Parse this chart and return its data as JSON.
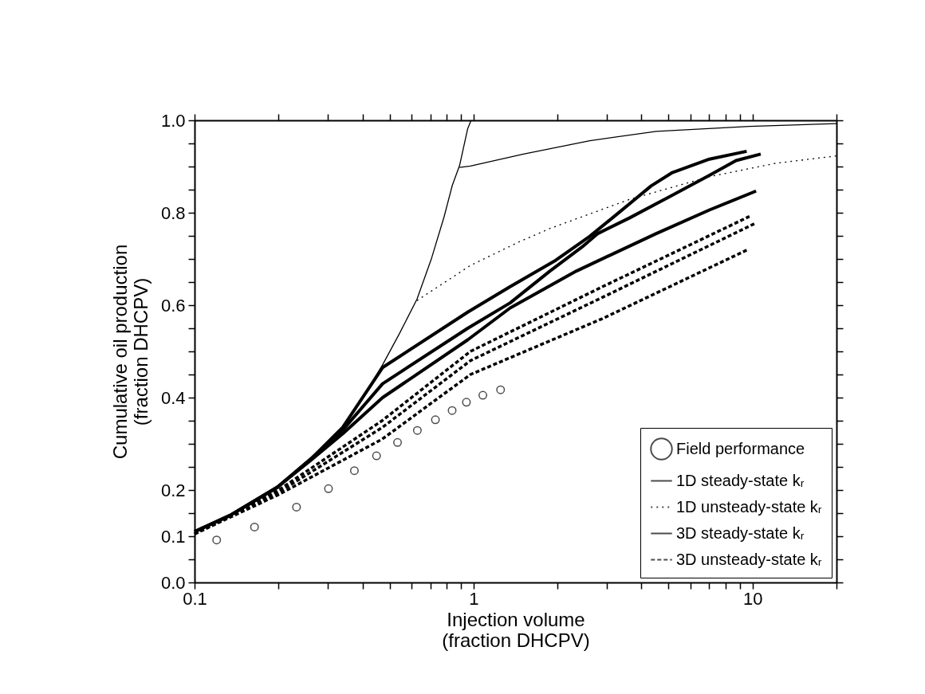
{
  "chart_data": {
    "type": "line",
    "xlabel": "Injection volume\n(fraction DHCPV)",
    "ylabel": "Cumulative oil production\n(fraction DHCPV)",
    "log": "x",
    "xlim": [
      0.1,
      20
    ],
    "ylim": [
      0,
      1.0
    ],
    "xticks": [
      {
        "value": 0.1,
        "label": "0.1"
      },
      {
        "value": 0.2,
        "label": null
      },
      {
        "value": 0.3,
        "label": null
      },
      {
        "value": 0.4,
        "label": null
      },
      {
        "value": 0.5,
        "label": null
      },
      {
        "value": 0.6,
        "label": null
      },
      {
        "value": 0.7,
        "label": null
      },
      {
        "value": 0.8,
        "label": null
      },
      {
        "value": 0.9,
        "label": null
      },
      1,
      {
        "value": 2,
        "label": null
      },
      {
        "value": 3,
        "label": null
      },
      {
        "value": 4,
        "label": null
      },
      {
        "value": 5,
        "label": null
      },
      {
        "value": 6,
        "label": null
      },
      {
        "value": 7,
        "label": null
      },
      {
        "value": 8,
        "label": null
      },
      {
        "value": 9,
        "label": null
      },
      10,
      {
        "value": 20,
        "label": null
      }
    ],
    "yticks": [
      {
        "value": 0,
        "label": "0.0"
      },
      {
        "value": 0.05,
        "label": null
      },
      0.1,
      {
        "value": 0.15,
        "label": null
      },
      {
        "value": 0.2,
        "label": "0.2"
      },
      {
        "value": 0.25,
        "label": null
      },
      {
        "value": 0.3,
        "label": null
      },
      {
        "value": 0.35,
        "label": null
      },
      {
        "value": 0.4,
        "label": "0.4"
      },
      {
        "value": 0.45,
        "label": null
      },
      {
        "value": 0.5,
        "label": null
      },
      {
        "value": 0.55,
        "label": null
      },
      {
        "value": 0.6,
        "label": "0.6"
      },
      {
        "value": 0.65,
        "label": null
      },
      {
        "value": 0.7,
        "label": null
      },
      {
        "value": 0.75,
        "label": null
      },
      {
        "value": 0.8,
        "label": "0.8"
      },
      {
        "value": 0.85,
        "label": null
      },
      {
        "value": 0.9,
        "label": null
      },
      {
        "value": 0.95,
        "label": null
      },
      {
        "value": 1.0,
        "label": "1.0"
      }
    ],
    "grid": false,
    "legend": "bottom right",
    "series": [
      {
        "name": "Field performance",
        "type": "scatter",
        "marker": "circle",
        "color": "#000000",
        "x": [
          0.12,
          0.164,
          0.232,
          0.302,
          0.374,
          0.449,
          0.534,
          0.629,
          0.73,
          0.838,
          0.943,
          1.08,
          1.25
        ],
        "values": [
          0.092,
          0.12,
          0.163,
          0.203,
          0.242,
          0.274,
          0.303,
          0.329,
          0.352,
          0.372,
          0.39,
          0.405,
          0.417
        ]
      },
      {
        "name": "1D steady-state kᵣ",
        "type": "line",
        "line_style": "solid",
        "color": "#000000",
        "x": [
          0.1,
          0.134,
          0.198,
          0.262,
          0.34,
          0.392,
          0.472,
          0.543,
          0.627,
          0.705,
          0.784,
          0.839,
          0.891,
          0.953,
          0.98
        ],
        "values": [
          0.11,
          0.145,
          0.206,
          0.268,
          0.336,
          0.391,
          0.471,
          0.539,
          0.613,
          0.699,
          0.791,
          0.859,
          0.902,
          0.982,
          1.0
        ]
      },
      {
        "type": "line",
        "line_style": "solid",
        "color": "#000000",
        "x": [
          0.891,
          0.975,
          1.51,
          2.61,
          4.52,
          9.75,
          20
        ],
        "values": [
          0.898,
          0.901,
          0.927,
          0.956,
          0.976,
          0.987,
          0.993
        ]
      },
      {
        "name": "1D unsteady-state kᵣ",
        "type": "line",
        "line_style": "dotted",
        "color": "#000000",
        "x": [
          0.627,
          0.975,
          1.445,
          1.88,
          3.63,
          7.01,
          12.1,
          20
        ],
        "values": [
          0.61,
          0.686,
          0.736,
          0.766,
          0.829,
          0.878,
          0.907,
          0.923
        ]
      },
      {
        "name": "3D steady-state kᵣ",
        "type": "line",
        "line_style": "solid",
        "color": "#000000",
        "x": [
          0.1,
          0.134,
          0.198,
          0.262,
          0.34,
          0.472,
          0.953,
          1.353,
          1.97,
          2.61,
          3.33,
          4.33,
          5.16,
          7.01,
          9.53
        ],
        "values": [
          0.11,
          0.145,
          0.206,
          0.268,
          0.336,
          0.465,
          0.585,
          0.64,
          0.697,
          0.749,
          0.801,
          0.858,
          0.887,
          0.916,
          0.933
        ]
      },
      {
        "type": "line",
        "line_style": "solid",
        "color": "#000000",
        "x": [
          0.1,
          0.134,
          0.198,
          0.262,
          0.34,
          0.472,
          0.953,
          1.353,
          1.88,
          2.45,
          2.79,
          3.63,
          5.05,
          7.01,
          8.73,
          10.7
        ],
        "values": [
          0.11,
          0.145,
          0.206,
          0.268,
          0.33,
          0.43,
          0.55,
          0.605,
          0.674,
          0.726,
          0.755,
          0.789,
          0.835,
          0.881,
          0.913,
          0.927
        ]
      },
      {
        "type": "line",
        "line_style": "solid",
        "color": "#000000",
        "x": [
          0.1,
          0.134,
          0.198,
          0.262,
          0.34,
          0.472,
          0.953,
          1.353,
          2.34,
          4.52,
          7.01,
          10.3
        ],
        "values": [
          0.11,
          0.145,
          0.206,
          0.265,
          0.322,
          0.4,
          0.525,
          0.594,
          0.674,
          0.755,
          0.806,
          0.847
        ]
      },
      {
        "name": "3D unsteady-state kᵣ",
        "type": "line",
        "line_style": "dashed",
        "color": "#000000",
        "x": [
          0.1,
          0.2,
          0.47,
          0.975,
          2.9,
          9.75
        ],
        "values": [
          0.105,
          0.2,
          0.35,
          0.5,
          0.64,
          0.792
        ]
      },
      {
        "type": "line",
        "line_style": "dashed",
        "color": "#000000",
        "x": [
          0.1,
          0.2,
          0.47,
          0.975,
          2.9,
          10.3
        ],
        "values": [
          0.105,
          0.195,
          0.335,
          0.48,
          0.617,
          0.778
        ]
      },
      {
        "type": "line",
        "line_style": "dashed",
        "color": "#000000",
        "x": [
          0.1,
          0.2,
          0.47,
          0.975,
          2.9,
          9.6
        ],
        "values": [
          0.105,
          0.19,
          0.31,
          0.45,
          0.571,
          0.72
        ]
      }
    ]
  }
}
